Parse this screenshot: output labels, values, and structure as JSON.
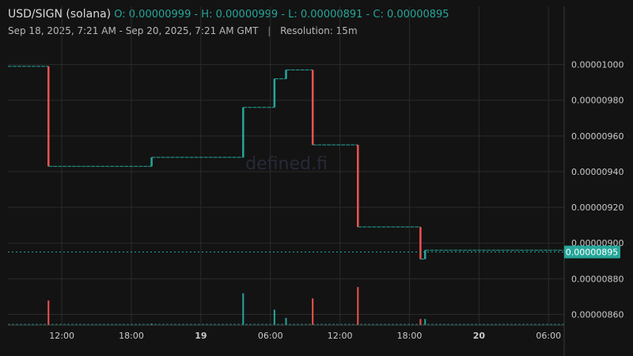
{
  "header": {
    "pair": "USD/SIGN (solana)",
    "ohlc": "O: 0.00000999 - H: 0.00000999 - L: 0.00000891 - C: 0.00000895",
    "range": "Sep 18, 2025, 7:21 AM - Sep 20, 2025, 7:21 AM GMT",
    "separator": "|",
    "resolution": "Resolution: 15m"
  },
  "watermark": "defined.fi",
  "colors": {
    "background": "#131313",
    "grid": "#2b2b2b",
    "up": "#26a69a",
    "down": "#ef5350",
    "axis_text": "#c9c9c9"
  },
  "chart_data": {
    "type": "candlestick",
    "x_tick_labels": [
      "12:00",
      "18:00",
      "19",
      "06:00",
      "12:00",
      "18:00",
      "20",
      "06:00"
    ],
    "x_ticks_hours_from_start": [
      4.65,
      10.65,
      16.65,
      22.65,
      28.65,
      34.65,
      40.65,
      46.65
    ],
    "y_tick_values": [
      8.6e-06,
      8.8e-06,
      9e-06,
      9.2e-06,
      9.4e-06,
      9.6e-06,
      9.8e-06,
      1e-05
    ],
    "y_tick_labels": [
      "0.00000860",
      "0.00000880",
      "0.00000900",
      "0.00000920",
      "0.00000940",
      "0.00000960",
      "0.00000980",
      "0.00001000"
    ],
    "ylim": [
      8.54e-06,
      1.014e-05
    ],
    "x_range_hours": [
      0,
      48
    ],
    "grid": true,
    "last_price": 8.95e-06,
    "last_price_label": "0.00000895",
    "price_moves": [
      {
        "t": 3.5,
        "open": 9.99e-06,
        "close": 9.43e-06,
        "volume": 0.24
      },
      {
        "t": 12.4,
        "open": 9.43e-06,
        "close": 9.48e-06,
        "volume": 0.015
      },
      {
        "t": 20.3,
        "open": 9.48e-06,
        "close": 9.76e-06,
        "volume": 0.31
      },
      {
        "t": 23.0,
        "open": 9.76e-06,
        "close": 9.92e-06,
        "volume": 0.15
      },
      {
        "t": 24.0,
        "open": 9.92e-06,
        "close": 9.97e-06,
        "volume": 0.07
      },
      {
        "t": 26.3,
        "open": 9.97e-06,
        "close": 9.55e-06,
        "volume": 0.26
      },
      {
        "t": 30.2,
        "open": 9.55e-06,
        "close": 9.09e-06,
        "volume": 0.37
      },
      {
        "t": 35.6,
        "open": 9.09e-06,
        "close": 8.91e-06,
        "volume": 0.06
      },
      {
        "t": 36.0,
        "open": 8.91e-06,
        "close": 8.96e-06,
        "volume": 0.06
      }
    ],
    "series_start": 9.99e-06,
    "series_end": 8.95e-06
  }
}
